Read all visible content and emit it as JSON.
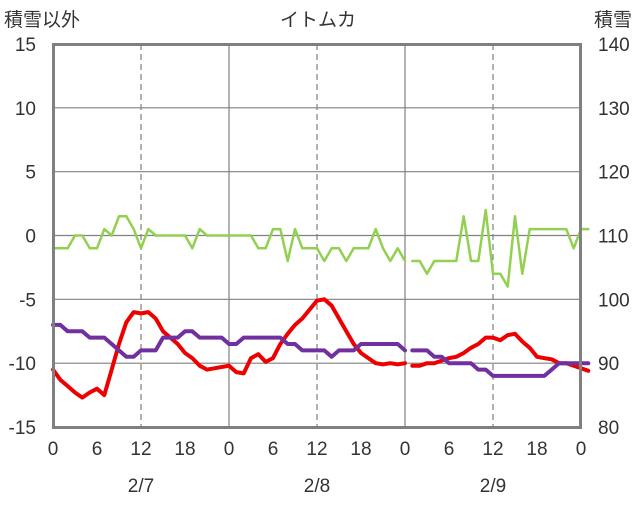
{
  "chart_data": {
    "type": "line",
    "title": "イトムカ",
    "left_axis_title": "積雪以外",
    "right_axis_title": "積雪",
    "left_axis": {
      "min": -15,
      "max": 15,
      "ticks": [
        "-15",
        "-10",
        "-5",
        "0",
        "5",
        "10",
        "15"
      ]
    },
    "right_axis": {
      "min": 80,
      "max": 140,
      "ticks": [
        "80",
        "90",
        "100",
        "110",
        "120",
        "130",
        "140"
      ]
    },
    "x_hour_ticks": [
      "0",
      "6",
      "12",
      "18",
      "0",
      "6",
      "12",
      "18",
      "0",
      "6",
      "12",
      "18",
      "0"
    ],
    "dates": [
      "2/7",
      "2/8",
      "2/9"
    ],
    "grid": "dashed vertical at 12h, solid day separators",
    "series": [
      {
        "name": "積雪",
        "axis": "right",
        "color": "#92d050",
        "points": [
          [
            0,
            108
          ],
          [
            2,
            108
          ],
          [
            3,
            110
          ],
          [
            4,
            110
          ],
          [
            5,
            108
          ],
          [
            6,
            108
          ],
          [
            7,
            111
          ],
          [
            8,
            110
          ],
          [
            9,
            113
          ],
          [
            10,
            113
          ],
          [
            11,
            111
          ],
          [
            12,
            108
          ],
          [
            13,
            111
          ],
          [
            14,
            110
          ],
          [
            15,
            110
          ],
          [
            16,
            110
          ],
          [
            17,
            110
          ],
          [
            18,
            110
          ],
          [
            19,
            108
          ],
          [
            20,
            111
          ],
          [
            21,
            110
          ],
          [
            22,
            110
          ],
          [
            23,
            110
          ],
          [
            24,
            110
          ],
          [
            25,
            110
          ],
          [
            26,
            110
          ],
          [
            27,
            110
          ],
          [
            28,
            108
          ],
          [
            29,
            108
          ],
          [
            30,
            111
          ],
          [
            31,
            111
          ],
          [
            32,
            106
          ],
          [
            33,
            111
          ],
          [
            34,
            108
          ],
          [
            35,
            108
          ],
          [
            36,
            108
          ],
          [
            37,
            106
          ],
          [
            38,
            108
          ],
          [
            39,
            108
          ],
          [
            40,
            106
          ],
          [
            41,
            108
          ],
          [
            42,
            108
          ],
          [
            43,
            108
          ],
          [
            44,
            111
          ],
          [
            45,
            108
          ],
          [
            46,
            106
          ],
          [
            47,
            108
          ],
          [
            48,
            106
          ],
          null,
          [
            49,
            106
          ],
          [
            50,
            106
          ],
          [
            51,
            104
          ],
          [
            52,
            106
          ],
          [
            53,
            106
          ],
          [
            54,
            106
          ],
          [
            55,
            106
          ],
          [
            56,
            113
          ],
          [
            57,
            106
          ],
          [
            58,
            106
          ],
          [
            59,
            114
          ],
          [
            60,
            104
          ],
          [
            61,
            104
          ],
          [
            62,
            102
          ],
          [
            63,
            113
          ],
          [
            64,
            104
          ],
          [
            65,
            111
          ],
          [
            66,
            111
          ],
          [
            67,
            111
          ],
          [
            68,
            111
          ],
          [
            69,
            111
          ],
          [
            70,
            111
          ],
          [
            71,
            108
          ],
          [
            72,
            111
          ],
          [
            73,
            111
          ]
        ]
      },
      {
        "name": "series-red",
        "axis": "left",
        "color": "#ee0000",
        "points": [
          [
            0,
            -10.5
          ],
          [
            1,
            -11.3
          ],
          [
            2,
            -11.8
          ],
          [
            3,
            -12.3
          ],
          [
            4,
            -12.7
          ],
          [
            5,
            -12.3
          ],
          [
            6,
            -12
          ],
          [
            7,
            -12.5
          ],
          [
            8,
            -10.5
          ],
          [
            9,
            -8.5
          ],
          [
            10,
            -6.8
          ],
          [
            11,
            -6
          ],
          [
            12,
            -6.1
          ],
          [
            13,
            -6
          ],
          [
            14,
            -6.5
          ],
          [
            15,
            -7.5
          ],
          [
            16,
            -8
          ],
          [
            17,
            -8.5
          ],
          [
            18,
            -9.2
          ],
          [
            19,
            -9.6
          ],
          [
            20,
            -10.2
          ],
          [
            21,
            -10.5
          ],
          [
            22,
            -10.4
          ],
          [
            23,
            -10.3
          ],
          [
            24,
            -10.2
          ],
          [
            25,
            -10.7
          ],
          [
            26,
            -10.8
          ],
          [
            27,
            -9.6
          ],
          [
            28,
            -9.3
          ],
          [
            29,
            -9.9
          ],
          [
            30,
            -9.6
          ],
          [
            31,
            -8.5
          ],
          [
            32,
            -7.7
          ],
          [
            33,
            -7
          ],
          [
            34,
            -6.5
          ],
          [
            35,
            -5.8
          ],
          [
            36,
            -5.1
          ],
          [
            37,
            -5
          ],
          [
            38,
            -5.5
          ],
          [
            39,
            -6.5
          ],
          [
            40,
            -7.5
          ],
          [
            41,
            -8.5
          ],
          [
            42,
            -9.2
          ],
          [
            43,
            -9.6
          ],
          [
            44,
            -10
          ],
          [
            45,
            -10.1
          ],
          [
            46,
            -10
          ],
          [
            47,
            -10.1
          ],
          [
            48,
            -10
          ],
          null,
          [
            49,
            -10.2
          ],
          [
            50,
            -10.2
          ],
          [
            51,
            -10
          ],
          [
            52,
            -10
          ],
          [
            53,
            -9.8
          ],
          [
            54,
            -9.6
          ],
          [
            55,
            -9.5
          ],
          [
            56,
            -9.2
          ],
          [
            57,
            -8.8
          ],
          [
            58,
            -8.5
          ],
          [
            59,
            -8
          ],
          [
            60,
            -8
          ],
          [
            61,
            -8.2
          ],
          [
            62,
            -7.8
          ],
          [
            63,
            -7.7
          ],
          [
            64,
            -8.3
          ],
          [
            65,
            -8.8
          ],
          [
            66,
            -9.5
          ],
          [
            67,
            -9.6
          ],
          [
            68,
            -9.7
          ],
          [
            69,
            -10
          ],
          [
            70,
            -10
          ],
          [
            71,
            -10.2
          ],
          [
            72,
            -10.4
          ],
          [
            73,
            -10.6
          ]
        ]
      },
      {
        "name": "series-purple",
        "axis": "left",
        "color": "#7030a0",
        "points": [
          [
            0,
            -7
          ],
          [
            1,
            -7
          ],
          [
            2,
            -7.5
          ],
          [
            3,
            -7.5
          ],
          [
            4,
            -7.5
          ],
          [
            5,
            -8
          ],
          [
            6,
            -8
          ],
          [
            7,
            -8
          ],
          [
            8,
            -8.5
          ],
          [
            9,
            -9
          ],
          [
            10,
            -9.5
          ],
          [
            11,
            -9.5
          ],
          [
            12,
            -9
          ],
          [
            13,
            -9
          ],
          [
            14,
            -9
          ],
          [
            15,
            -8
          ],
          [
            16,
            -8
          ],
          [
            17,
            -8
          ],
          [
            18,
            -7.5
          ],
          [
            19,
            -7.5
          ],
          [
            20,
            -8
          ],
          [
            21,
            -8
          ],
          [
            22,
            -8
          ],
          [
            23,
            -8
          ],
          [
            24,
            -8.5
          ],
          [
            25,
            -8.5
          ],
          [
            26,
            -8
          ],
          [
            27,
            -8
          ],
          [
            28,
            -8
          ],
          [
            29,
            -8
          ],
          [
            30,
            -8
          ],
          [
            31,
            -8
          ],
          [
            32,
            -8.5
          ],
          [
            33,
            -8.5
          ],
          [
            34,
            -9
          ],
          [
            35,
            -9
          ],
          [
            36,
            -9
          ],
          [
            37,
            -9
          ],
          [
            38,
            -9.5
          ],
          [
            39,
            -9
          ],
          [
            40,
            -9
          ],
          [
            41,
            -9
          ],
          [
            42,
            -8.5
          ],
          [
            43,
            -8.5
          ],
          [
            44,
            -8.5
          ],
          [
            45,
            -8.5
          ],
          [
            46,
            -8.5
          ],
          [
            47,
            -8.5
          ],
          [
            48,
            -9
          ],
          null,
          [
            49,
            -9
          ],
          [
            50,
            -9
          ],
          [
            51,
            -9
          ],
          [
            52,
            -9.5
          ],
          [
            53,
            -9.5
          ],
          [
            54,
            -10
          ],
          [
            55,
            -10
          ],
          [
            56,
            -10
          ],
          [
            57,
            -10
          ],
          [
            58,
            -10.5
          ],
          [
            59,
            -10.5
          ],
          [
            60,
            -11
          ],
          [
            61,
            -11
          ],
          [
            62,
            -11
          ],
          [
            63,
            -11
          ],
          [
            64,
            -11
          ],
          [
            65,
            -11
          ],
          [
            66,
            -11
          ],
          [
            67,
            -11
          ],
          [
            68,
            -10.5
          ],
          [
            69,
            -10
          ],
          [
            70,
            -10
          ],
          [
            71,
            -10
          ],
          [
            72,
            -10
          ],
          [
            73,
            -10
          ]
        ]
      }
    ]
  }
}
